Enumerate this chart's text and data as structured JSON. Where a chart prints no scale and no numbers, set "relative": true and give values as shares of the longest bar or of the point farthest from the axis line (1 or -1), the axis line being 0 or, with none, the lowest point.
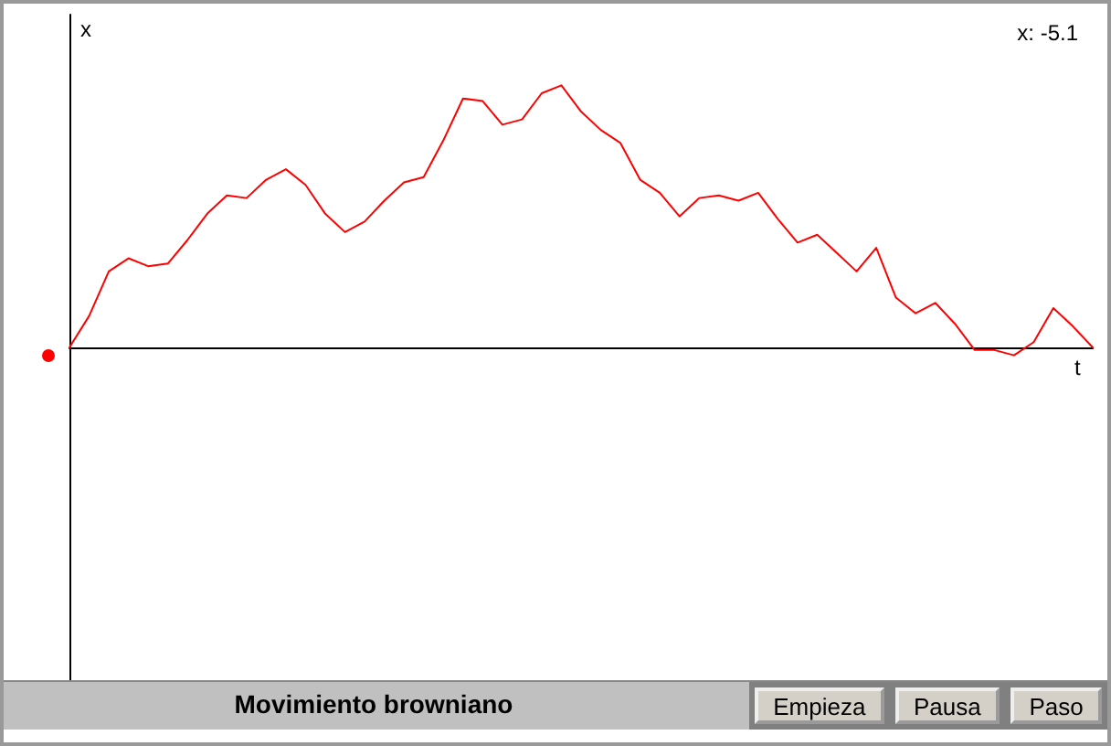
{
  "chart_data": {
    "type": "line",
    "title": "Movimiento browniano",
    "xlabel": "t",
    "ylabel": "x",
    "relative": true,
    "grid": false,
    "marker": "none",
    "line_style": "solid",
    "annotations": [
      "x: -5.1",
      "Empieza",
      "Pausa",
      "Paso"
    ],
    "categories": [
      null,
      null,
      null,
      null,
      null,
      null,
      null,
      null,
      null,
      null,
      null,
      null,
      null,
      null,
      null,
      null,
      null,
      null,
      null,
      null,
      null,
      null,
      null,
      null,
      null,
      null,
      null,
      null,
      null,
      null,
      null,
      null,
      null,
      null,
      null,
      null,
      null,
      null,
      null,
      null,
      null,
      null,
      null,
      null,
      null,
      null,
      null,
      null,
      null,
      null,
      null,
      null,
      null
    ],
    "series": [
      {
        "color": "#ff0000",
        "values": [
          0,
          0.12,
          0.29,
          0.34,
          0.31,
          0.32,
          0.41,
          0.51,
          0.58,
          0.57,
          0.64,
          0.68,
          0.62,
          0.51,
          0.44,
          0.48,
          0.56,
          0.63,
          0.65,
          0.79,
          0.95,
          0.94,
          0.85,
          0.87,
          0.97,
          1,
          0.9,
          0.83,
          0.78,
          0.64,
          0.59,
          0.5,
          0.57,
          0.58,
          0.56,
          0.59,
          0.49,
          0.4,
          0.43,
          0.36,
          0.29,
          0.38,
          0.19,
          0.13,
          0.17,
          0.09,
          -0.01,
          -0.01,
          -0.03,
          0.02,
          0.15,
          0.08,
          0
        ]
      }
    ]
  }
}
